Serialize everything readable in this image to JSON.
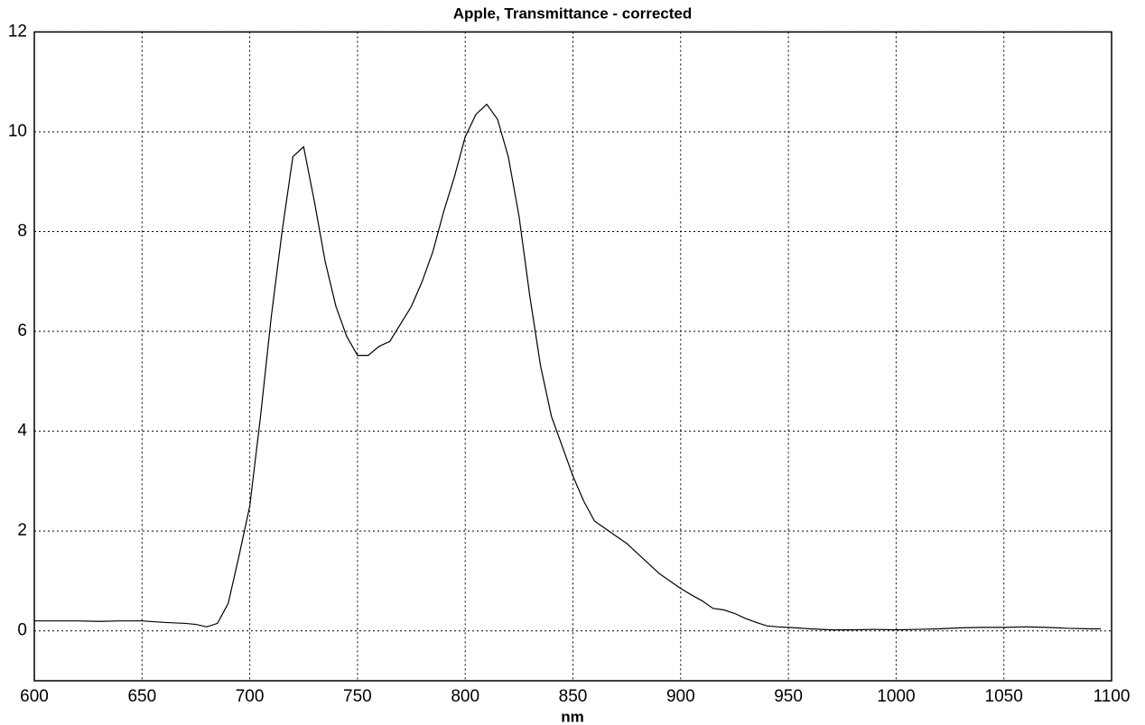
{
  "chart_data": {
    "type": "line",
    "title": "Apple, Transmittance - corrected",
    "x_label": "nm",
    "x": [
      600,
      610,
      620,
      630,
      640,
      650,
      660,
      670,
      675,
      680,
      685,
      690,
      695,
      700,
      705,
      710,
      715,
      720,
      725,
      730,
      735,
      740,
      745,
      750,
      755,
      760,
      765,
      770,
      775,
      780,
      785,
      790,
      795,
      800,
      805,
      810,
      815,
      820,
      825,
      830,
      835,
      840,
      845,
      850,
      855,
      860,
      865,
      870,
      875,
      880,
      885,
      890,
      895,
      900,
      905,
      910,
      915,
      920,
      925,
      930,
      935,
      940,
      945,
      950,
      960,
      970,
      980,
      990,
      1000,
      1010,
      1020,
      1030,
      1040,
      1050,
      1060,
      1070,
      1080,
      1090,
      1095
    ],
    "series": [
      {
        "name": "Transmittance",
        "color": "#000000",
        "values": [
          0.2,
          0.2,
          0.2,
          0.19,
          0.2,
          0.2,
          0.17,
          0.15,
          0.13,
          0.08,
          0.15,
          0.55,
          1.5,
          2.5,
          4.3,
          6.3,
          8.0,
          9.5,
          9.7,
          8.6,
          7.4,
          6.5,
          5.9,
          5.52,
          5.52,
          5.7,
          5.8,
          6.15,
          6.5,
          7.0,
          7.6,
          8.4,
          9.1,
          9.9,
          10.35,
          10.55,
          10.25,
          9.5,
          8.3,
          6.7,
          5.3,
          4.3,
          3.7,
          3.1,
          2.6,
          2.2,
          2.05,
          1.9,
          1.75,
          1.55,
          1.35,
          1.15,
          1.0,
          0.85,
          0.72,
          0.6,
          0.45,
          0.42,
          0.35,
          0.25,
          0.17,
          0.1,
          0.08,
          0.07,
          0.04,
          0.02,
          0.02,
          0.03,
          0.02,
          0.03,
          0.04,
          0.06,
          0.07,
          0.07,
          0.08,
          0.07,
          0.05,
          0.04,
          0.04
        ]
      }
    ],
    "xlim": [
      600,
      1100
    ],
    "xticks": [
      600,
      650,
      700,
      750,
      800,
      850,
      900,
      950,
      1000,
      1050,
      1100
    ],
    "ylim": [
      -1,
      12
    ],
    "yticks": [
      0,
      2,
      4,
      6,
      8,
      10,
      12
    ],
    "grid": true
  }
}
